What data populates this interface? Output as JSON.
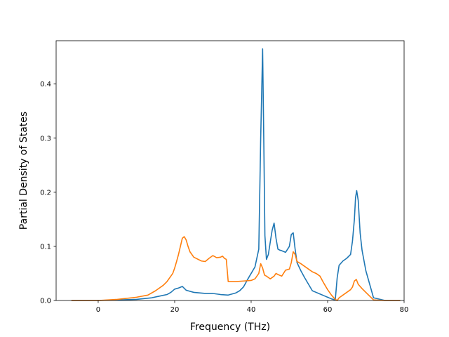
{
  "chart_data": {
    "type": "line",
    "title": "",
    "xlabel": "Frequency (THz)",
    "ylabel": "Partial Density of States",
    "xlim": [
      -11,
      80
    ],
    "ylim": [
      0,
      0.48
    ],
    "xticks": [
      0,
      20,
      40,
      60,
      80
    ],
    "xtick_labels": [
      "0",
      "20",
      "40",
      "60",
      "80"
    ],
    "yticks": [
      0.0,
      0.1,
      0.2,
      0.3,
      0.4
    ],
    "ytick_labels": [
      "0.0",
      "0.1",
      "0.2",
      "0.3",
      "0.4"
    ],
    "grid": false,
    "legend": false,
    "series": [
      {
        "color": "#1f77b4",
        "x": [
          -7,
          0,
          10,
          14,
          16,
          18,
          19,
          20,
          21,
          22,
          23,
          25,
          28,
          30,
          32,
          34,
          36,
          37,
          38,
          39,
          40,
          41,
          42,
          42.5,
          43,
          43.3,
          43.6,
          44,
          44.5,
          45,
          45.5,
          46,
          46.5,
          47,
          47.5,
          48,
          49,
          50,
          50.5,
          51,
          51.5,
          52,
          53,
          54,
          55,
          56,
          57,
          58,
          59,
          60,
          61,
          62,
          62.5,
          63,
          64,
          65,
          66,
          66.5,
          67,
          67.3,
          67.6,
          68,
          68.5,
          69,
          70,
          71,
          72,
          75,
          79
        ],
        "y": [
          0,
          0,
          0.002,
          0.005,
          0.008,
          0.011,
          0.015,
          0.021,
          0.023,
          0.026,
          0.019,
          0.015,
          0.013,
          0.013,
          0.011,
          0.01,
          0.014,
          0.018,
          0.025,
          0.038,
          0.05,
          0.062,
          0.095,
          0.3,
          0.465,
          0.3,
          0.12,
          0.076,
          0.085,
          0.108,
          0.13,
          0.143,
          0.115,
          0.095,
          0.093,
          0.092,
          0.089,
          0.1,
          0.122,
          0.125,
          0.095,
          0.07,
          0.055,
          0.042,
          0.03,
          0.018,
          0.015,
          0.012,
          0.009,
          0.006,
          0.003,
          0.001,
          0.042,
          0.065,
          0.073,
          0.078,
          0.085,
          0.11,
          0.15,
          0.19,
          0.203,
          0.185,
          0.125,
          0.093,
          0.055,
          0.03,
          0.005,
          0,
          0
        ]
      },
      {
        "color": "#ff7f0e",
        "x": [
          -7,
          0,
          5,
          10,
          13,
          15,
          17,
          18,
          19,
          19.5,
          20,
          20.5,
          21,
          21.5,
          22,
          22.5,
          23,
          23.5,
          24,
          25,
          27,
          28,
          29,
          30,
          31,
          32,
          32.5,
          33,
          33.5,
          34,
          36,
          38,
          40,
          41,
          42,
          42.5,
          43,
          43.5,
          44,
          45,
          46,
          46.5,
          47,
          48,
          49,
          50,
          50.5,
          51,
          51.5,
          52,
          53,
          54,
          55,
          56,
          57,
          58,
          59,
          60,
          61,
          62,
          62.5,
          63,
          64,
          65,
          66,
          66.5,
          67,
          67.5,
          68,
          69,
          70,
          71,
          72,
          75,
          79
        ],
        "y": [
          0,
          0,
          0.002,
          0.006,
          0.01,
          0.018,
          0.028,
          0.035,
          0.045,
          0.05,
          0.06,
          0.072,
          0.085,
          0.1,
          0.115,
          0.118,
          0.112,
          0.1,
          0.09,
          0.08,
          0.073,
          0.072,
          0.078,
          0.083,
          0.079,
          0.08,
          0.082,
          0.078,
          0.076,
          0.035,
          0.035,
          0.036,
          0.037,
          0.04,
          0.05,
          0.068,
          0.06,
          0.047,
          0.045,
          0.04,
          0.045,
          0.05,
          0.048,
          0.045,
          0.056,
          0.058,
          0.07,
          0.09,
          0.085,
          0.072,
          0.068,
          0.063,
          0.058,
          0.053,
          0.05,
          0.045,
          0.032,
          0.02,
          0.01,
          0.002,
          0,
          0.005,
          0.01,
          0.015,
          0.02,
          0.025,
          0.036,
          0.039,
          0.03,
          0.022,
          0.015,
          0.008,
          0.001,
          0,
          0
        ]
      }
    ]
  }
}
